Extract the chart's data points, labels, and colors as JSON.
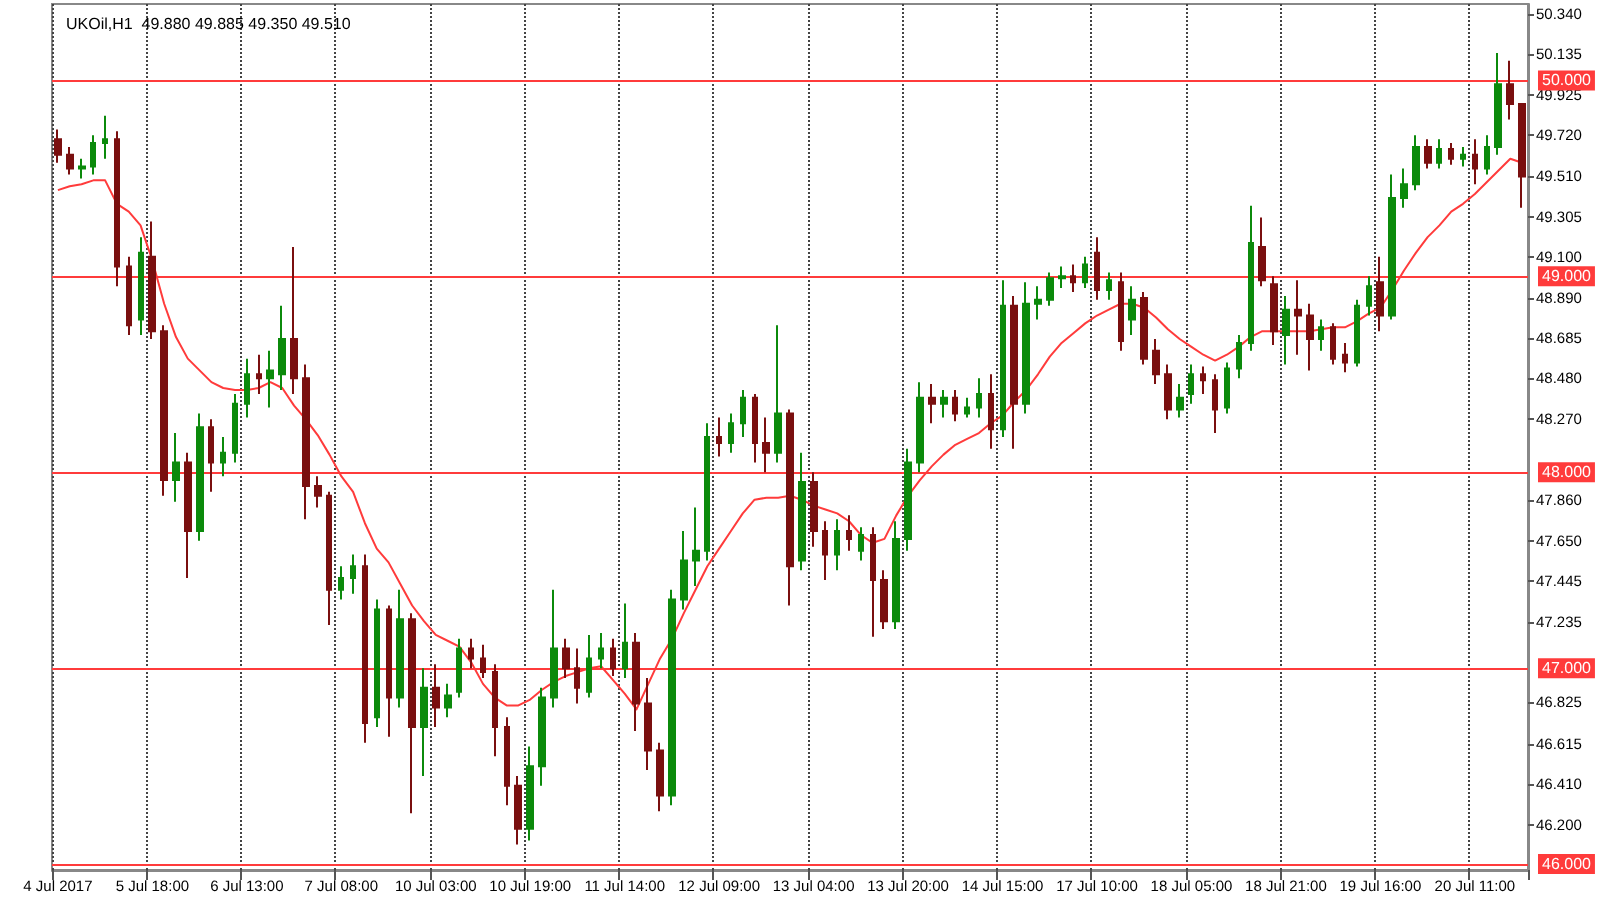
{
  "chart_data": {
    "type": "candlestick",
    "title": "UKOil,H1  49.880 49.885 49.350 49.510",
    "categories": [
      "4 Jul 2017",
      null,
      null,
      null,
      null,
      null,
      null,
      null,
      "5 Jul 18:00",
      null,
      null,
      null,
      null,
      null,
      null,
      null,
      "6 Jul 13:00",
      null,
      null,
      null,
      null,
      null,
      null,
      null,
      "7 Jul 08:00",
      null,
      null,
      null,
      null,
      null,
      null,
      null,
      "10 Jul 03:00",
      null,
      null,
      null,
      null,
      null,
      null,
      null,
      "10 Jul 19:00",
      null,
      null,
      null,
      null,
      null,
      null,
      null,
      "11 Jul 14:00",
      null,
      null,
      null,
      null,
      null,
      null,
      null,
      "12 Jul 09:00",
      null,
      null,
      null,
      null,
      null,
      null,
      null,
      "13 Jul 04:00",
      null,
      null,
      null,
      null,
      null,
      null,
      null,
      "13 Jul 20:00",
      null,
      null,
      null,
      null,
      null,
      null,
      null,
      "14 Jul 15:00",
      null,
      null,
      null,
      null,
      null,
      null,
      null,
      "17 Jul 10:00",
      null,
      null,
      null,
      null,
      null,
      null,
      null,
      "18 Jul 05:00",
      null,
      null,
      null,
      null,
      null,
      null,
      null,
      "18 Jul 21:00",
      null,
      null,
      null,
      null,
      null,
      null,
      null,
      "19 Jul 16:00",
      null,
      null,
      null,
      null,
      null,
      null,
      null,
      "20 Jul 11:00",
      null,
      null,
      null,
      null
    ],
    "series": [
      {
        "ohlc": [
          [
            49.7,
            49.75,
            49.58,
            49.62
          ],
          [
            49.62,
            49.66,
            49.52,
            49.55
          ],
          [
            49.55,
            49.6,
            49.5,
            49.56
          ],
          [
            49.56,
            49.72,
            49.52,
            49.68
          ],
          [
            49.68,
            49.82,
            49.6,
            49.7
          ],
          [
            49.7,
            49.74,
            48.95,
            49.05
          ],
          [
            49.05,
            49.1,
            48.7,
            48.75
          ],
          [
            48.78,
            49.2,
            48.7,
            49.12
          ],
          [
            49.1,
            49.28,
            48.68,
            48.72
          ],
          [
            48.72,
            48.75,
            47.88,
            47.96
          ],
          [
            47.96,
            48.2,
            47.85,
            48.05
          ],
          [
            48.05,
            48.1,
            47.46,
            47.7
          ],
          [
            47.7,
            48.3,
            47.65,
            48.23
          ],
          [
            48.23,
            48.27,
            47.9,
            48.05
          ],
          [
            48.05,
            48.18,
            47.98,
            48.1
          ],
          [
            48.1,
            48.4,
            48.05,
            48.35
          ],
          [
            48.35,
            48.58,
            48.28,
            48.5
          ],
          [
            48.5,
            48.6,
            48.4,
            48.48
          ],
          [
            48.48,
            48.62,
            48.33,
            48.52
          ],
          [
            48.5,
            48.85,
            48.42,
            48.68
          ],
          [
            48.68,
            49.15,
            48.4,
            48.48
          ],
          [
            48.48,
            48.55,
            47.76,
            47.93
          ],
          [
            47.93,
            47.98,
            47.82,
            47.88
          ],
          [
            47.88,
            47.9,
            47.22,
            47.4
          ],
          [
            47.4,
            47.52,
            47.35,
            47.46
          ],
          [
            47.46,
            47.58,
            47.38,
            47.52
          ],
          [
            47.52,
            47.58,
            46.62,
            46.72
          ],
          [
            46.75,
            47.35,
            46.7,
            47.3
          ],
          [
            47.3,
            47.32,
            46.65,
            46.85
          ],
          [
            46.85,
            47.4,
            46.8,
            47.25
          ],
          [
            47.25,
            47.28,
            46.26,
            46.7
          ],
          [
            46.7,
            47.0,
            46.45,
            46.9
          ],
          [
            46.9,
            47.02,
            46.7,
            46.8
          ],
          [
            46.8,
            46.92,
            46.75,
            46.86
          ],
          [
            46.88,
            47.15,
            46.85,
            47.1
          ],
          [
            47.1,
            47.15,
            47.0,
            47.05
          ],
          [
            47.05,
            47.12,
            46.95,
            46.98
          ],
          [
            46.98,
            47.02,
            46.55,
            46.7
          ],
          [
            46.7,
            46.75,
            46.3,
            46.4
          ],
          [
            46.4,
            46.45,
            46.1,
            46.18
          ],
          [
            46.18,
            46.6,
            46.12,
            46.5
          ],
          [
            46.5,
            46.9,
            46.4,
            46.85
          ],
          [
            46.85,
            47.4,
            46.8,
            47.1
          ],
          [
            47.1,
            47.15,
            46.95,
            47.0
          ],
          [
            47.0,
            47.1,
            46.82,
            46.9
          ],
          [
            46.88,
            47.17,
            46.85,
            47.05
          ],
          [
            47.05,
            47.18,
            47.0,
            47.1
          ],
          [
            47.1,
            47.15,
            46.96,
            47.0
          ],
          [
            47.0,
            47.33,
            46.95,
            47.13
          ],
          [
            47.13,
            47.18,
            46.68,
            46.82
          ],
          [
            46.82,
            46.95,
            46.48,
            46.58
          ],
          [
            46.58,
            46.62,
            46.27,
            46.35
          ],
          [
            46.35,
            47.4,
            46.3,
            47.35
          ],
          [
            47.35,
            47.7,
            47.3,
            47.55
          ],
          [
            47.55,
            47.82,
            47.42,
            47.6
          ],
          [
            47.6,
            48.25,
            47.55,
            48.18
          ],
          [
            48.18,
            48.28,
            48.08,
            48.15
          ],
          [
            48.15,
            48.3,
            48.1,
            48.25
          ],
          [
            48.25,
            48.42,
            48.18,
            48.38
          ],
          [
            48.38,
            48.4,
            48.05,
            48.15
          ],
          [
            48.15,
            48.28,
            48.0,
            48.1
          ],
          [
            48.1,
            48.75,
            48.05,
            48.3
          ],
          [
            48.3,
            48.32,
            47.32,
            47.52
          ],
          [
            47.55,
            48.1,
            47.5,
            47.95
          ],
          [
            47.95,
            48.0,
            47.62,
            47.7
          ],
          [
            47.7,
            47.75,
            47.45,
            47.58
          ],
          [
            47.58,
            47.76,
            47.5,
            47.7
          ],
          [
            47.7,
            47.78,
            47.6,
            47.66
          ],
          [
            47.6,
            47.72,
            47.55,
            47.68
          ],
          [
            47.68,
            47.72,
            47.16,
            47.45
          ],
          [
            47.45,
            47.5,
            47.2,
            47.24
          ],
          [
            47.24,
            47.75,
            47.2,
            47.66
          ],
          [
            47.66,
            48.12,
            47.6,
            48.05
          ],
          [
            48.05,
            48.46,
            48.0,
            48.38
          ],
          [
            48.38,
            48.45,
            48.25,
            48.35
          ],
          [
            48.35,
            48.42,
            48.28,
            48.38
          ],
          [
            48.38,
            48.42,
            48.26,
            48.3
          ],
          [
            48.3,
            48.38,
            48.28,
            48.33
          ],
          [
            48.33,
            48.48,
            48.28,
            48.4
          ],
          [
            48.4,
            48.5,
            48.12,
            48.22
          ],
          [
            48.22,
            48.98,
            48.18,
            48.85
          ],
          [
            48.85,
            48.9,
            48.12,
            48.35
          ],
          [
            48.35,
            48.97,
            48.3,
            48.86
          ],
          [
            48.86,
            48.95,
            48.78,
            48.88
          ],
          [
            48.88,
            49.02,
            48.85,
            48.99
          ],
          [
            48.99,
            49.05,
            48.94,
            49.0
          ],
          [
            49.0,
            49.06,
            48.92,
            48.97
          ],
          [
            48.97,
            49.1,
            48.94,
            49.06
          ],
          [
            49.12,
            49.2,
            48.88,
            48.93
          ],
          [
            48.93,
            49.02,
            48.88,
            48.98
          ],
          [
            48.97,
            49.02,
            48.62,
            48.67
          ],
          [
            48.78,
            48.95,
            48.7,
            48.88
          ],
          [
            48.89,
            48.92,
            48.55,
            48.58
          ],
          [
            48.62,
            48.68,
            48.45,
            48.5
          ],
          [
            48.5,
            48.55,
            48.27,
            48.32
          ],
          [
            48.32,
            48.45,
            48.28,
            48.38
          ],
          [
            48.4,
            48.55,
            48.35,
            48.5
          ],
          [
            48.5,
            48.54,
            48.4,
            48.47
          ],
          [
            48.47,
            48.5,
            48.2,
            48.32
          ],
          [
            48.33,
            48.56,
            48.3,
            48.53
          ],
          [
            48.53,
            48.7,
            48.48,
            48.66
          ],
          [
            48.66,
            49.36,
            48.62,
            49.17
          ],
          [
            49.15,
            49.3,
            48.95,
            48.98
          ],
          [
            48.96,
            49.0,
            48.65,
            48.72
          ],
          [
            48.7,
            48.9,
            48.55,
            48.83
          ],
          [
            48.83,
            48.98,
            48.6,
            48.8
          ],
          [
            48.8,
            48.86,
            48.52,
            48.68
          ],
          [
            48.68,
            48.78,
            48.62,
            48.74
          ],
          [
            48.74,
            48.76,
            48.55,
            48.58
          ],
          [
            48.6,
            48.66,
            48.51,
            48.56
          ],
          [
            48.56,
            48.88,
            48.54,
            48.85
          ],
          [
            48.85,
            49.0,
            48.8,
            48.95
          ],
          [
            48.97,
            49.1,
            48.72,
            48.8
          ],
          [
            48.8,
            49.52,
            48.78,
            49.4
          ],
          [
            49.4,
            49.55,
            49.35,
            49.47
          ],
          [
            49.47,
            49.72,
            49.44,
            49.66
          ],
          [
            49.66,
            49.7,
            49.55,
            49.58
          ],
          [
            49.58,
            49.7,
            49.55,
            49.65
          ],
          [
            49.65,
            49.68,
            49.57,
            49.6
          ],
          [
            49.6,
            49.66,
            49.56,
            49.62
          ],
          [
            49.62,
            49.7,
            49.47,
            49.55
          ],
          [
            49.55,
            49.72,
            49.52,
            49.66
          ],
          [
            49.66,
            50.14,
            49.62,
            49.98
          ],
          [
            49.98,
            50.1,
            49.8,
            49.88
          ],
          [
            49.88,
            49.885,
            49.35,
            49.51
          ]
        ],
        "colors": [
          "#7a0f0f",
          "#7a0f0f",
          "#0b8a0b",
          "#0b8a0b",
          "#0b8a0b",
          "#7a0f0f",
          "#7a0f0f",
          "#0b8a0b",
          "#7a0f0f",
          "#7a0f0f",
          "#0b8a0b",
          "#7a0f0f",
          "#0b8a0b",
          "#7a0f0f",
          "#0b8a0b",
          "#0b8a0b",
          "#0b8a0b",
          "#7a0f0f",
          "#0b8a0b",
          "#0b8a0b",
          "#7a0f0f",
          "#7a0f0f",
          "#7a0f0f",
          "#7a0f0f",
          "#0b8a0b",
          "#0b8a0b",
          "#7a0f0f",
          "#0b8a0b",
          "#7a0f0f",
          "#0b8a0b",
          "#7a0f0f",
          "#0b8a0b",
          "#7a0f0f",
          "#0b8a0b",
          "#0b8a0b",
          "#7a0f0f",
          "#7a0f0f",
          "#7a0f0f",
          "#7a0f0f",
          "#7a0f0f",
          "#0b8a0b",
          "#0b8a0b",
          "#0b8a0b",
          "#7a0f0f",
          "#7a0f0f",
          "#0b8a0b",
          "#0b8a0b",
          "#7a0f0f",
          "#0b8a0b",
          "#7a0f0f",
          "#7a0f0f",
          "#7a0f0f",
          "#0b8a0b",
          "#0b8a0b",
          "#0b8a0b",
          "#0b8a0b",
          "#7a0f0f",
          "#0b8a0b",
          "#0b8a0b",
          "#7a0f0f",
          "#7a0f0f",
          "#0b8a0b",
          "#7a0f0f",
          "#0b8a0b",
          "#7a0f0f",
          "#7a0f0f",
          "#0b8a0b",
          "#7a0f0f",
          "#0b8a0b",
          "#7a0f0f",
          "#7a0f0f",
          "#0b8a0b",
          "#0b8a0b",
          "#0b8a0b",
          "#7a0f0f",
          "#0b8a0b",
          "#7a0f0f",
          "#0b8a0b",
          "#0b8a0b",
          "#7a0f0f",
          "#0b8a0b",
          "#7a0f0f",
          "#0b8a0b",
          "#0b8a0b",
          "#0b8a0b",
          "#0b8a0b",
          "#7a0f0f",
          "#0b8a0b",
          "#7a0f0f",
          "#0b8a0b",
          "#7a0f0f",
          "#0b8a0b",
          "#7a0f0f",
          "#7a0f0f",
          "#7a0f0f",
          "#0b8a0b",
          "#0b8a0b",
          "#7a0f0f",
          "#7a0f0f",
          "#0b8a0b",
          "#0b8a0b",
          "#0b8a0b",
          "#7a0f0f",
          "#7a0f0f",
          "#0b8a0b",
          "#7a0f0f",
          "#7a0f0f",
          "#0b8a0b",
          "#7a0f0f",
          "#7a0f0f",
          "#0b8a0b",
          "#0b8a0b",
          "#7a0f0f",
          "#0b8a0b",
          "#0b8a0b",
          "#0b8a0b",
          "#7a0f0f",
          "#0b8a0b",
          "#7a0f0f",
          "#0b8a0b",
          "#7a0f0f",
          "#0b8a0b",
          "#0b8a0b",
          "#7a0f0f",
          "#7a0f0f"
        ]
      },
      {
        "type": "line",
        "color": "#ff3b3b",
        "marker": "none",
        "line_style": "solid",
        "values": [
          49.44,
          49.46,
          49.47,
          49.49,
          49.49,
          49.37,
          49.33,
          49.26,
          49.08,
          48.86,
          48.69,
          48.58,
          48.52,
          48.46,
          48.43,
          48.42,
          48.42,
          48.43,
          48.46,
          48.43,
          48.34,
          48.27,
          48.19,
          48.09,
          47.98,
          47.9,
          47.74,
          47.61,
          47.54,
          47.43,
          47.32,
          47.24,
          47.17,
          47.14,
          47.11,
          47.03,
          46.92,
          46.85,
          46.81,
          46.81,
          46.84,
          46.89,
          46.93,
          46.96,
          46.98,
          47.0,
          47.01,
          46.94,
          46.87,
          46.79,
          46.92,
          47.05,
          47.15,
          47.28,
          47.4,
          47.52,
          47.61,
          47.7,
          47.79,
          47.86,
          47.87,
          47.87,
          47.88,
          47.86,
          47.83,
          47.81,
          47.79,
          47.75,
          47.68,
          47.64,
          47.66,
          47.78,
          47.88,
          47.96,
          48.03,
          48.09,
          48.14,
          48.17,
          48.2,
          48.25,
          48.29,
          48.36,
          48.42,
          48.5,
          48.59,
          48.66,
          48.71,
          48.76,
          48.8,
          48.83,
          48.86,
          48.86,
          48.84,
          48.79,
          48.73,
          48.68,
          48.64,
          48.6,
          48.57,
          48.6,
          48.64,
          48.69,
          48.72,
          48.72,
          48.72,
          48.72,
          48.72,
          48.73,
          48.74,
          48.74,
          48.77,
          48.81,
          48.84,
          48.93,
          49.03,
          49.12,
          49.2,
          49.26,
          49.33,
          49.37,
          49.42,
          49.48,
          49.54,
          49.6,
          49.58
        ]
      }
    ],
    "ylim": [
      45.97,
      50.39
    ],
    "yticks": [
      {
        "value": 50.34,
        "label": "50.340"
      },
      {
        "value": 50.135,
        "label": "50.135"
      },
      {
        "value": 49.925,
        "label": "49.925"
      },
      {
        "value": 49.72,
        "label": "49.720"
      },
      {
        "value": 49.51,
        "label": "49.510"
      },
      {
        "value": 49.305,
        "label": "49.305"
      },
      {
        "value": 49.1,
        "label": "49.100"
      },
      {
        "value": 48.89,
        "label": "48.890"
      },
      {
        "value": 48.685,
        "label": "48.685"
      },
      {
        "value": 48.48,
        "label": "48.480"
      },
      {
        "value": 48.27,
        "label": "48.270"
      },
      {
        "value": 47.86,
        "label": "47.860"
      },
      {
        "value": 47.65,
        "label": "47.650"
      },
      {
        "value": 47.445,
        "label": "47.445"
      },
      {
        "value": 47.235,
        "label": "47.235"
      },
      {
        "value": 46.825,
        "label": "46.825"
      },
      {
        "value": 46.615,
        "label": "46.615"
      },
      {
        "value": 46.41,
        "label": "46.410"
      },
      {
        "value": 46.2,
        "label": "46.200"
      }
    ],
    "ref_lines": [
      {
        "axis": "y",
        "value": 50,
        "label": "50.000",
        "color": "#ff3b3b"
      },
      {
        "axis": "y",
        "value": 49,
        "label": "49.000",
        "color": "#ff3b3b"
      },
      {
        "axis": "y",
        "value": 48,
        "label": "48.000",
        "color": "#ff3b3b"
      },
      {
        "axis": "y",
        "value": 47,
        "label": "47.000",
        "color": "#ff3b3b"
      },
      {
        "axis": "y",
        "value": 46,
        "label": "46.000",
        "color": "#ff3b3b"
      }
    ],
    "grid": "x"
  }
}
